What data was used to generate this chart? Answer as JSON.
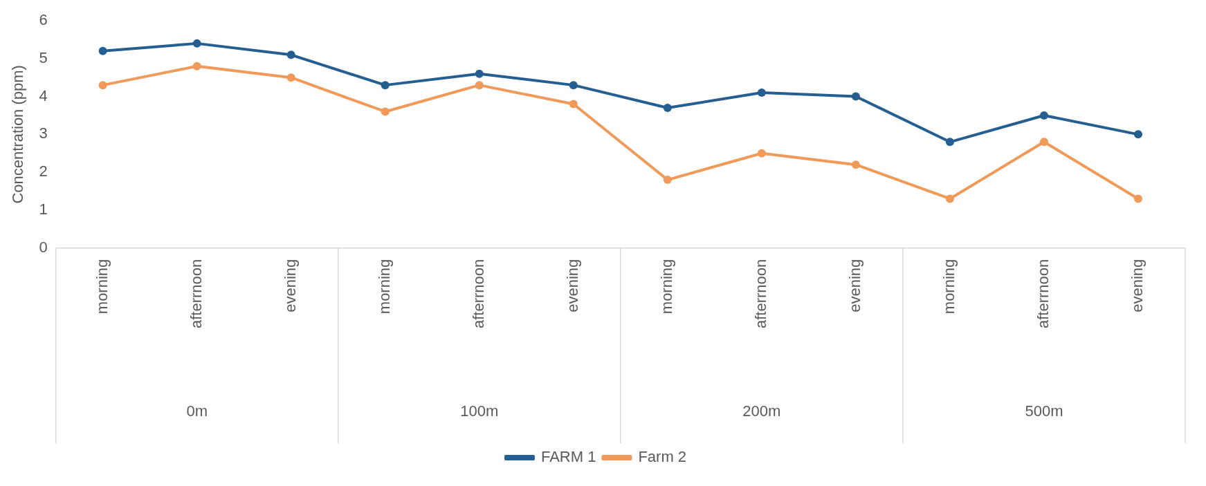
{
  "chart_data": {
    "type": "line",
    "ylabel": "Concentration (ppm)",
    "categories": [
      "morning",
      "afterrnoon",
      "evening",
      "morning",
      "afterrnoon",
      "evening",
      "morning",
      "afterrnoon",
      "evening",
      "morning",
      "afterrnoon",
      "evening"
    ],
    "series": [
      {
        "name": "FARM 1",
        "color": "#255e91",
        "values": [
          5.2,
          5.4,
          5.1,
          4.3,
          4.6,
          4.3,
          3.7,
          4.1,
          4.0,
          2.8,
          3.5,
          3.0
        ]
      },
      {
        "name": "Farm 2",
        "color": "#f09a5a",
        "values": [
          4.3,
          4.8,
          4.5,
          3.6,
          4.3,
          3.8,
          1.8,
          2.5,
          2.2,
          1.3,
          2.8,
          1.3
        ]
      }
    ],
    "annotations": [
      "0m",
      "100m",
      "200m",
      "500m"
    ],
    "ylim": [
      0,
      6
    ],
    "yticks": [
      0,
      1,
      2,
      3,
      4,
      5,
      6
    ],
    "grid": false,
    "legend": "bottom",
    "marker": "circle",
    "line_style": "solid"
  }
}
